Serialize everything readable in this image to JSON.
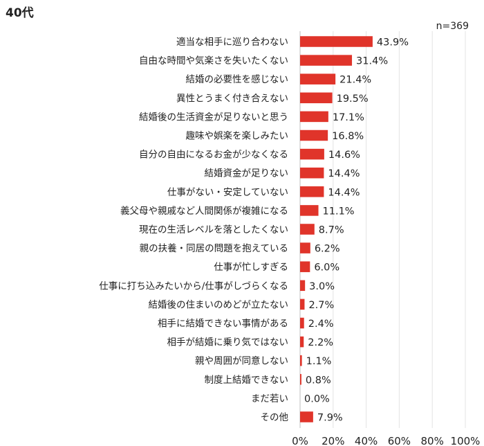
{
  "title": "40代",
  "sample_size": "n=369",
  "chart_data": {
    "type": "bar",
    "orientation": "horizontal",
    "title": "40代",
    "xlim": [
      0,
      100
    ],
    "x_ticks": [
      "0%",
      "20%",
      "40%",
      "60%",
      "80%",
      "100%"
    ],
    "grid": true,
    "bar_color": "#e0342a",
    "categories": [
      "適当な相手に巡り合わない",
      "自由な時間や気楽さを失いたくない",
      "結婚の必要性を感じない",
      "異性とうまく付き合えない",
      "結婚後の生活資金が足りないと思う",
      "趣味や娯楽を楽しみたい",
      "自分の自由になるお金が少なくなる",
      "結婚資金が足りない",
      "仕事がない・安定していない",
      "義父母や親戚など人間関係が複雑になる",
      "現在の生活レベルを落としたくない",
      "親の扶養・同居の問題を抱えている",
      "仕事が忙しすぎる",
      "仕事に打ち込みたいから/仕事がしづらくなる",
      "結婚後の住まいのめどが立たない",
      "相手に結婚できない事情がある",
      "相手が結婚に乗り気ではない",
      "親や周囲が同意しない",
      "制度上結婚できない",
      "まだ若い",
      "その他"
    ],
    "values": [
      43.9,
      31.4,
      21.4,
      19.5,
      17.1,
      16.8,
      14.6,
      14.4,
      14.4,
      11.1,
      8.7,
      6.2,
      6.0,
      3.0,
      2.7,
      2.4,
      2.2,
      1.1,
      0.8,
      0.0,
      7.9
    ],
    "value_labels": [
      "43.9%",
      "31.4%",
      "21.4%",
      "19.5%",
      "17.1%",
      "16.8%",
      "14.6%",
      "14.4%",
      "14.4%",
      "11.1%",
      "8.7%",
      "6.2%",
      "6.0%",
      "3.0%",
      "2.7%",
      "2.4%",
      "2.2%",
      "1.1%",
      "0.8%",
      "0.0%",
      "7.9%"
    ]
  }
}
